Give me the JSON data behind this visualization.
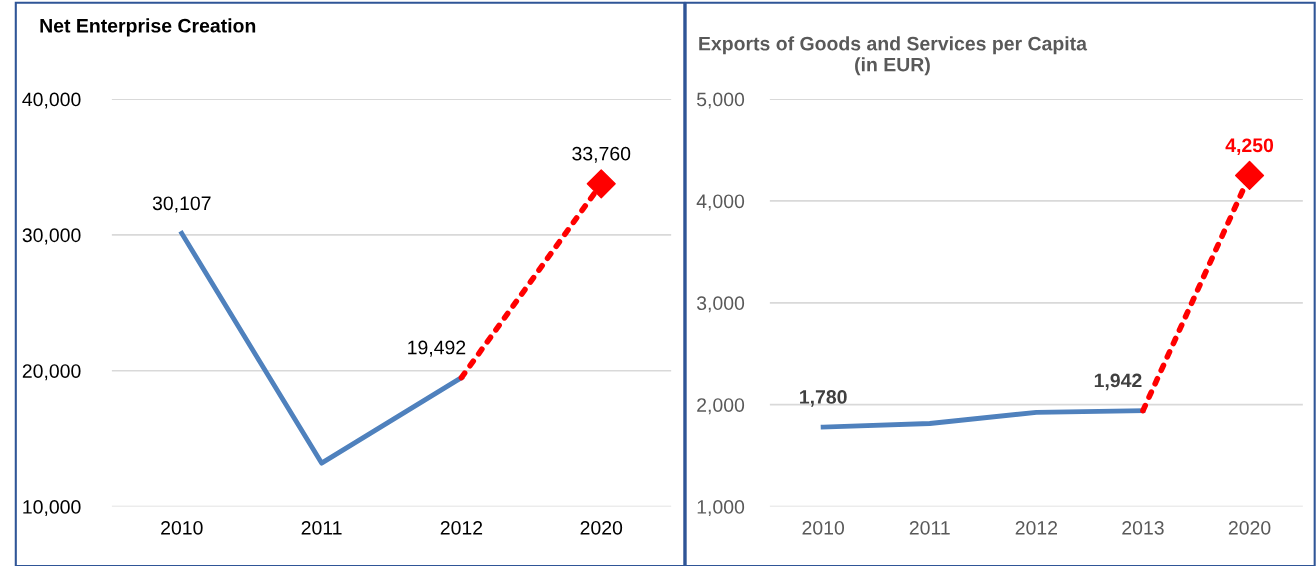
{
  "chart_data": [
    {
      "type": "line",
      "title": "Net Enterprise Creation",
      "categories": [
        "2010",
        "2011",
        "2012",
        "2020"
      ],
      "ylim": [
        10000,
        40000
      ],
      "yticks": [
        {
          "value": 10000,
          "label": "10,000"
        },
        {
          "value": 20000,
          "label": "20,000"
        },
        {
          "value": 30000,
          "label": "30,000"
        },
        {
          "value": 40000,
          "label": "40,000"
        }
      ],
      "grid": "y",
      "legend": false,
      "series": [
        {
          "color": "#4f81bd",
          "values": [
            30107,
            13200,
            19492,
            null
          ],
          "value_labels": [
            "30,107",
            null,
            "19,492",
            null
          ],
          "line_style": "solid",
          "marker": "none"
        },
        {
          "color": "#ff0000",
          "values": [
            null,
            null,
            19492,
            33760
          ],
          "line_style": "dotted",
          "marker": "none"
        },
        {
          "type": "scatter",
          "color": "#ff0000",
          "values": [
            null,
            null,
            null,
            33760
          ],
          "value_labels": [
            null,
            null,
            null,
            "33,760"
          ],
          "marker": "diamond"
        }
      ]
    },
    {
      "type": "line",
      "title": "Exports of Goods and Services per Capita\n(in EUR)",
      "categories": [
        "2010",
        "2011",
        "2012",
        "2013",
        "2020"
      ],
      "ylim": [
        1000,
        5000
      ],
      "yticks": [
        {
          "value": 1000,
          "label": "1,000"
        },
        {
          "value": 2000,
          "label": "2,000"
        },
        {
          "value": 3000,
          "label": "3,000"
        },
        {
          "value": 4000,
          "label": "4,000"
        },
        {
          "value": 5000,
          "label": "5,000"
        }
      ],
      "grid": "y",
      "legend": false,
      "series": [
        {
          "color": "#4f81bd",
          "values": [
            1780,
            1815,
            1925,
            1942,
            null
          ],
          "value_labels": [
            "1,780",
            null,
            null,
            "1,942",
            null
          ],
          "line_style": "solid",
          "marker": "none"
        },
        {
          "color": "#ff0000",
          "values": [
            null,
            null,
            null,
            1942,
            4250
          ],
          "line_style": "dotted",
          "marker": "none"
        },
        {
          "type": "scatter",
          "color": "#ff0000",
          "values": [
            null,
            null,
            null,
            null,
            4250
          ],
          "value_labels": [
            null,
            null,
            null,
            null,
            "4,250"
          ],
          "marker": "diamond"
        }
      ]
    }
  ]
}
